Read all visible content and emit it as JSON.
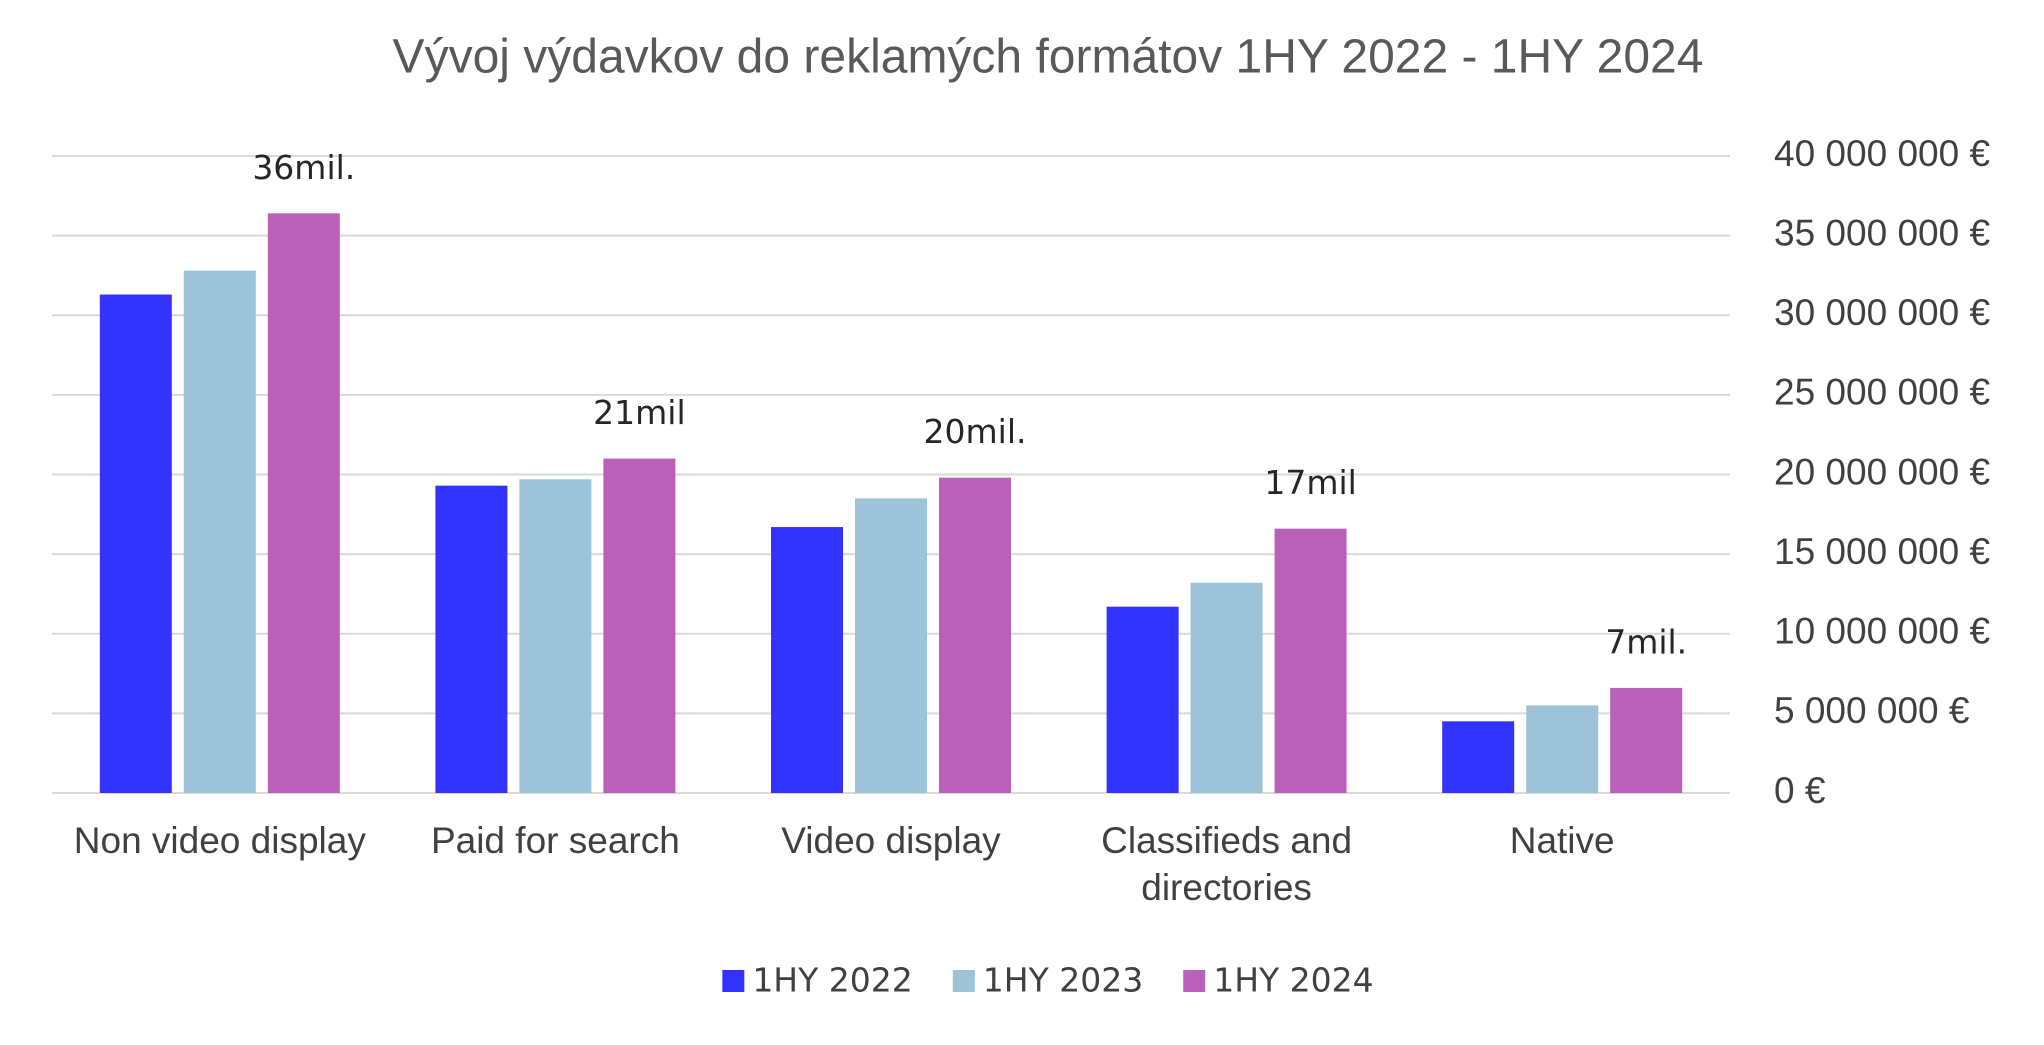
{
  "chart_data": {
    "type": "bar",
    "title": "Vývoj výdavkov do reklamých formátov 1HY 2022 - 1HY 2024",
    "categories": [
      "Non video display",
      "Paid for search",
      "Video display",
      "Classifieds and directories",
      "Native"
    ],
    "series": [
      {
        "name": "1HY 2022",
        "color": "#3333ff",
        "values": [
          31300000,
          19300000,
          16700000,
          11700000,
          4500000
        ]
      },
      {
        "name": "1HY 2023",
        "color": "#9dc3d9",
        "values": [
          32800000,
          19700000,
          18500000,
          13200000,
          5500000
        ]
      },
      {
        "name": "1HY 2024",
        "color": "#b961b8",
        "values": [
          36400000,
          21000000,
          19800000,
          16600000,
          6600000
        ],
        "value_labels": [
          "36mil.",
          "21mil",
          "20mil.",
          "17mil",
          "7mil."
        ]
      }
    ],
    "ylim": [
      0,
      40000000
    ],
    "yticks": [
      {
        "value": 0,
        "label": "0 €"
      },
      {
        "value": 5000000,
        "label": "5 000 000 €"
      },
      {
        "value": 10000000,
        "label": "10 000 000 €"
      },
      {
        "value": 15000000,
        "label": "15 000 000 €"
      },
      {
        "value": 20000000,
        "label": "20 000 000 €"
      },
      {
        "value": 25000000,
        "label": "25 000 000 €"
      },
      {
        "value": 30000000,
        "label": "30 000 000 €"
      },
      {
        "value": 35000000,
        "label": "35 000 000 €"
      },
      {
        "value": 40000000,
        "label": "40 000 000 €"
      }
    ],
    "y_axis_side": "right",
    "grid": true,
    "legend": "bottom"
  }
}
